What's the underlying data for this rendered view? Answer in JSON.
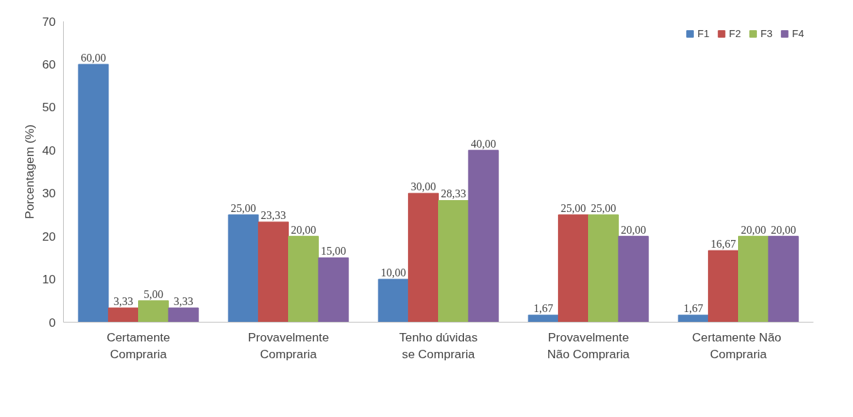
{
  "chart_data": {
    "type": "bar",
    "ylabel": "Porcentagem (%)",
    "categories": [
      "Certamente\nCompraria",
      "Provavelmente\nCompraria",
      "Tenho dúvidas\nse Compraria",
      "Provavelmente\nNão Compraria",
      "Certamente  Não\nCompraria"
    ],
    "series": [
      {
        "name": "F1",
        "color": "#4f81bd",
        "values": [
          60,
          25,
          10,
          1.67,
          1.67
        ],
        "value_labels": [
          "60,00",
          "25,00",
          "10,00",
          "1,67",
          "1,67"
        ]
      },
      {
        "name": "F2",
        "color": "#c0504d",
        "values": [
          3.33,
          23.33,
          30,
          25,
          16.67
        ],
        "value_labels": [
          "3,33",
          "23,33",
          "30,00",
          "25,00",
          "16,67"
        ]
      },
      {
        "name": "F3",
        "color": "#9bbb59",
        "values": [
          5,
          20,
          28.33,
          25,
          20
        ],
        "value_labels": [
          "5,00",
          "20,00",
          "28,33",
          "25,00",
          "20,00"
        ]
      },
      {
        "name": "F4",
        "color": "#8064a2",
        "values": [
          3.33,
          15,
          40,
          20,
          20
        ],
        "value_labels": [
          "3,33",
          "15,00",
          "40,00",
          "20,00",
          "20,00"
        ]
      }
    ],
    "ylim": [
      0,
      70
    ],
    "yticks": [
      0,
      10,
      20,
      30,
      40,
      50,
      60,
      70
    ],
    "grid": false,
    "legend": "top right"
  }
}
